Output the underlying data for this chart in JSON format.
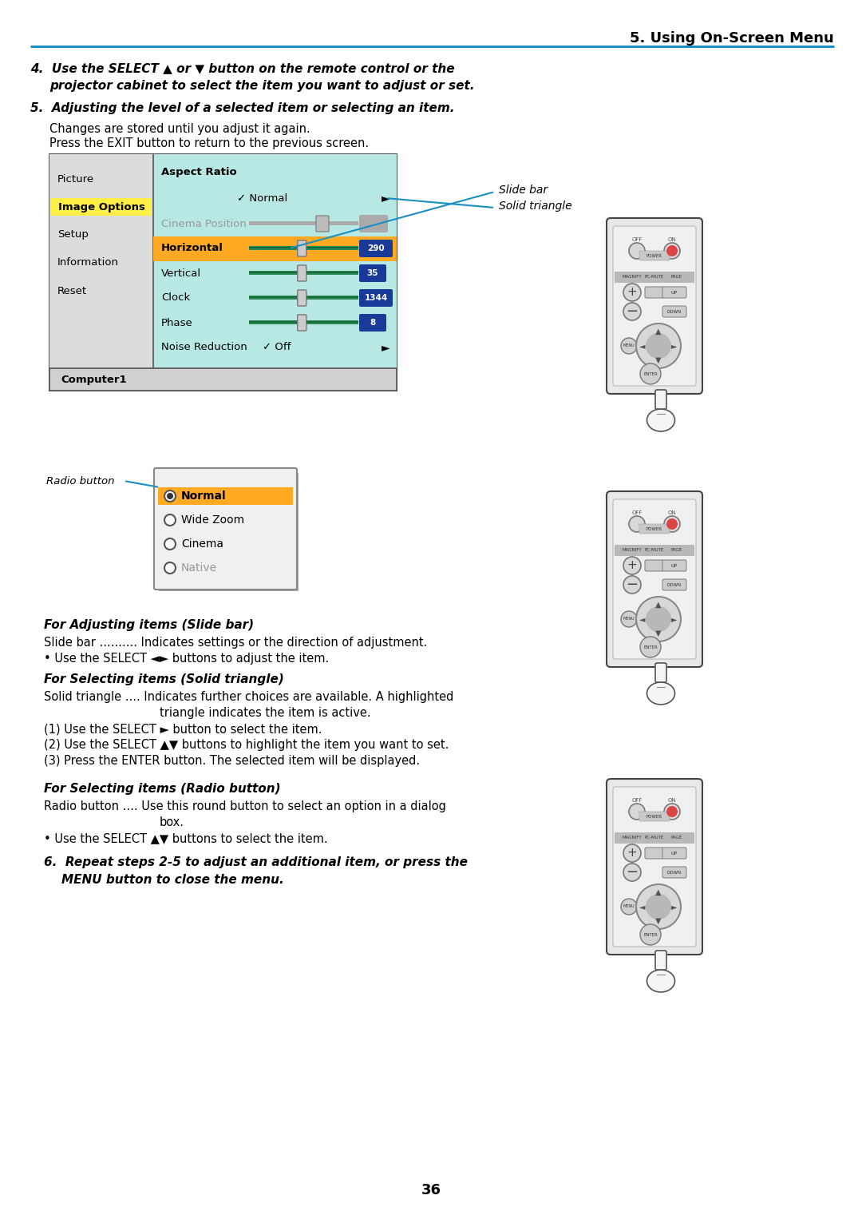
{
  "page_number": "36",
  "header_title": "5. Using On-Screen Menu",
  "header_line_color": "#1a8fc1",
  "background_color": "#ffffff",
  "menu_bg": "#b8e8e4",
  "menu_left_bg": "#e0e0e0",
  "menu_border": "#666666",
  "menu_items_left": [
    "Picture",
    "Image Options",
    "Setup",
    "Information",
    "Reset"
  ],
  "menu_selected_left": "Image Options",
  "menu_selected_left_color": "#ffee44",
  "menu_highlight_color": "#ffaa22",
  "horizontal_value": "290",
  "vertical_value": "35",
  "clock_value": "1344",
  "phase_value": "8",
  "value_badge_color": "#1a3a9a",
  "computer1_text": "Computer1",
  "radio_dialog_items": [
    "Normal",
    "Wide Zoom",
    "Cinema",
    "Native"
  ],
  "radio_selected": "Normal",
  "radio_selected_color": "#ffaa22",
  "radio_button_label": "Radio button",
  "slide_bar_label": "Slide bar",
  "solid_triangle_label": "Solid triangle",
  "annotation_line_color": "#1a8fc1"
}
